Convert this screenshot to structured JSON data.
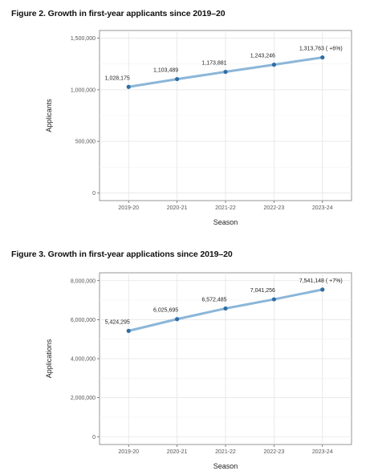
{
  "figures": [
    {
      "title": "Figure 2. Growth in first-year applicants since 2019–20",
      "line_color": "#8bb6d8",
      "point_color": "#2f6ea5",
      "chart_data": {
        "type": "line",
        "categories": [
          "2019-20",
          "2020-21",
          "2021-22",
          "2022-23",
          "2023-24"
        ],
        "values": [
          1028175,
          1103489,
          1173881,
          1243246,
          1313763
        ],
        "data_labels": [
          "1,028,175",
          "1,103,489",
          "1,173,881",
          "1,243,246",
          "1,313,763 ( +6%)"
        ],
        "xlabel": "Season",
        "ylabel": "Applicants",
        "ylim": [
          0,
          1500000
        ],
        "yticks": [
          0,
          500000,
          1000000,
          1500000
        ],
        "ytick_labels": [
          "0",
          "500,000",
          "1,000,000",
          "1,500,000"
        ],
        "grid": true
      }
    },
    {
      "title": "Figure 3. Growth in first-year applications since 2019–20",
      "line_color": "#8bb6d8",
      "point_color": "#2f6ea5",
      "chart_data": {
        "type": "line",
        "categories": [
          "2019-20",
          "2020-21",
          "2021-22",
          "2022-23",
          "2023-24"
        ],
        "values": [
          5424295,
          6025695,
          6572485,
          7041256,
          7541148
        ],
        "data_labels": [
          "5,424,295",
          "6,025,695",
          "6,572,485",
          "7,041,256",
          "7,541,148 ( +7%)"
        ],
        "xlabel": "Season",
        "ylabel": "Applications",
        "ylim": [
          0,
          8000000
        ],
        "yticks": [
          0,
          2000000,
          4000000,
          6000000,
          8000000
        ],
        "ytick_labels": [
          "0",
          "2,000,000",
          "4,000,000",
          "6,000,000",
          "8,000,000"
        ],
        "grid": true
      }
    }
  ]
}
